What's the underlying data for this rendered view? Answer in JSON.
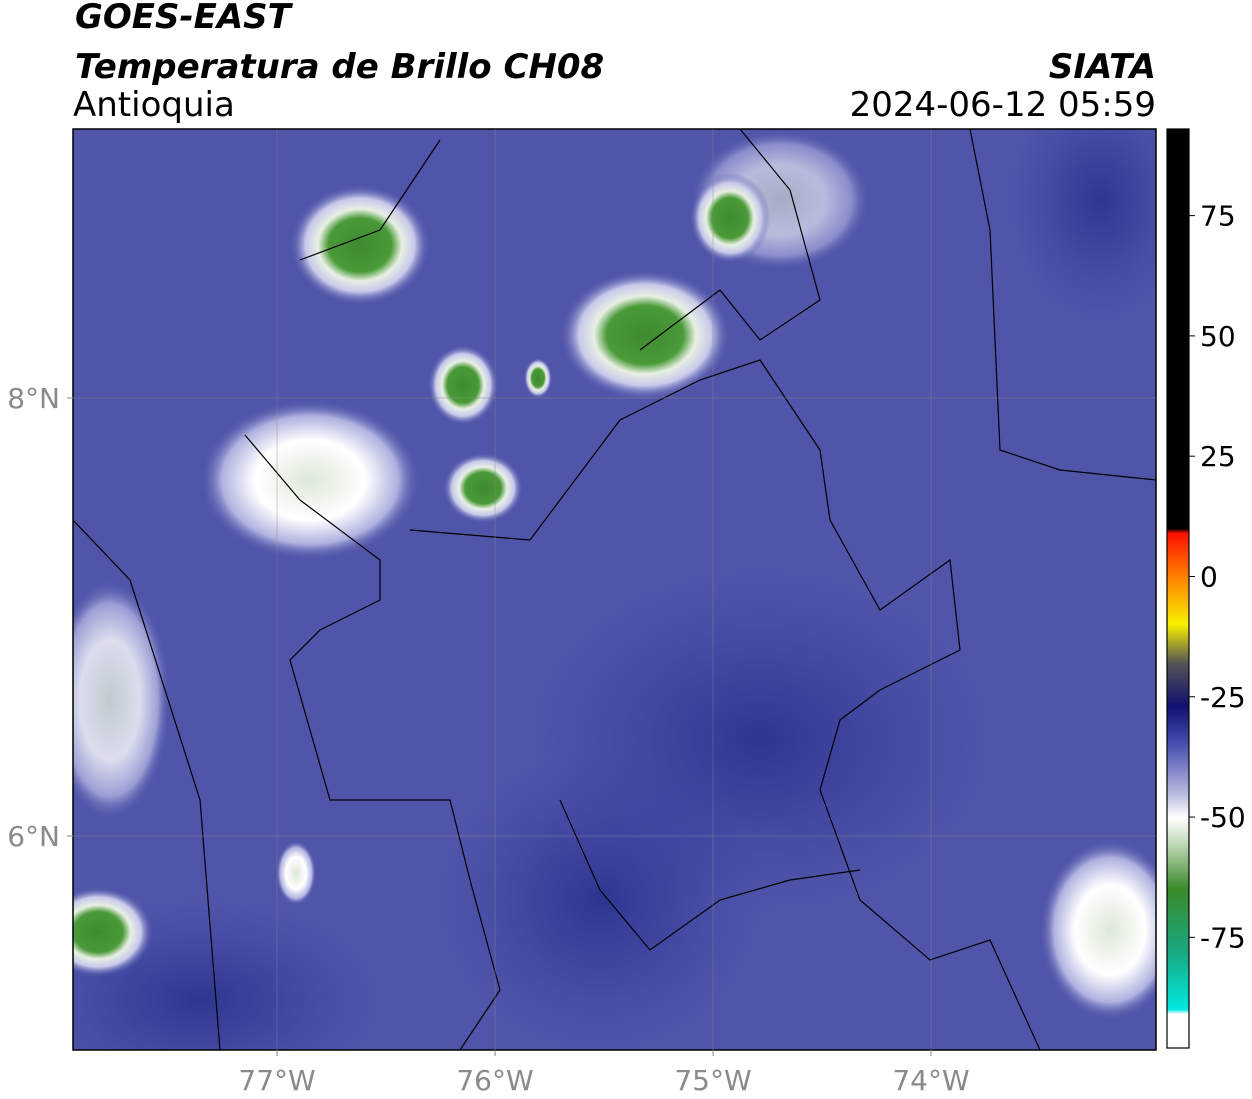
{
  "header": {
    "title": "GOES-EAST",
    "subtitle": "Temperatura de Brillo CH08",
    "region": "Antioquia",
    "source": "SIATA",
    "datetime": "2024-06-12 05:59"
  },
  "map": {
    "xlim": [
      -77.936,
      -72.968
    ],
    "ylim": [
      5.023,
      9.228
    ],
    "xticks": [
      {
        "value": -77,
        "label": "77°W"
      },
      {
        "value": -76,
        "label": "76°W"
      },
      {
        "value": -75,
        "label": "75°W"
      },
      {
        "value": -74,
        "label": "74°W"
      }
    ],
    "yticks": [
      {
        "value": 8,
        "label": "8°N"
      },
      {
        "value": 6,
        "label": "6°N"
      }
    ]
  },
  "colorbar": {
    "lim": [
      -98,
      93
    ],
    "ticks": [
      75,
      50,
      25,
      0,
      -25,
      -50,
      -75
    ]
  }
}
